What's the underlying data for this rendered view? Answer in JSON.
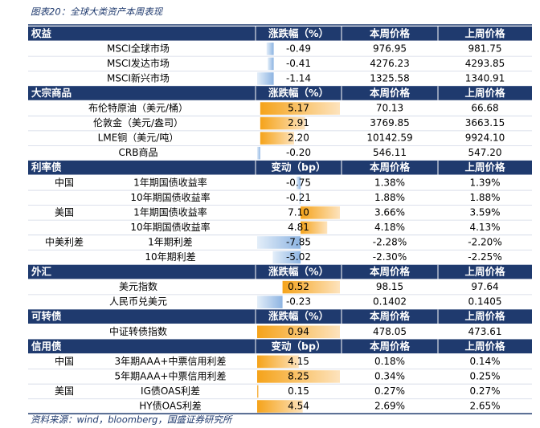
{
  "title": "图表20：全球大类资产本周表现",
  "sections": [
    {
      "title": "权益",
      "change_header": "涨跌幅（%）",
      "this_week_header": "本周价格",
      "last_week_header": "上周价格",
      "rows": [
        {
          "name": "MSCI全球市场",
          "change": -0.49,
          "this_week": "976.95",
          "last_week": "981.75"
        },
        {
          "name": "MSCI发达市场",
          "change": -0.41,
          "this_week": "4276.23",
          "last_week": "4293.85"
        },
        {
          "name": "MSCI新兴市场",
          "change": -1.14,
          "this_week": "1325.58",
          "last_week": "1340.91"
        }
      ]
    },
    {
      "title": "大宗商品",
      "change_header": "涨跌幅（%）",
      "this_week_header": "本周价格",
      "last_week_header": "上周价格",
      "rows": [
        {
          "name": "布伦特原油（美元/桶）",
          "change": 5.17,
          "this_week": "70.13",
          "last_week": "66.68"
        },
        {
          "name": "伦敦金（美元/盎司）",
          "change": 2.91,
          "this_week": "3769.85",
          "last_week": "3663.15"
        },
        {
          "name": "LME铜（美元/吨）",
          "change": 2.2,
          "change_label": "2.20",
          "this_week": "10142.59",
          "last_week": "9924.10"
        },
        {
          "name": "CRB商品",
          "change": -0.2,
          "change_label": "-0.20",
          "this_week": "546.11",
          "last_week": "547.20"
        }
      ]
    },
    {
      "title": "利率债",
      "change_header": "变动（bp）",
      "this_week_header": "本周价格",
      "last_week_header": "上周价格",
      "rows": [
        {
          "group": "中国",
          "name": "1年期国债收益率",
          "change": -0.75,
          "this_week": "1.38%",
          "last_week": "1.39%"
        },
        {
          "name": "10年期国债收益率",
          "change": -0.21,
          "this_week": "1.88%",
          "last_week": "1.88%"
        },
        {
          "group": "美国",
          "name": "1年期国债收益率",
          "change": 7.1,
          "change_label": "7.10",
          "this_week": "3.66%",
          "last_week": "3.59%"
        },
        {
          "name": "10年期国债收益率",
          "change": 4.81,
          "this_week": "4.18%",
          "last_week": "4.13%"
        },
        {
          "group": "中美利差",
          "name": "1年期利差",
          "change": -7.85,
          "this_week": "-2.28%",
          "last_week": "-2.20%"
        },
        {
          "name": "10年期利差",
          "change": -5.02,
          "this_week": "-2.30%",
          "last_week": "-2.25%"
        }
      ]
    },
    {
      "title": "外汇",
      "change_header": "涨跌幅（%）",
      "this_week_header": "本周价格",
      "last_week_header": "上周价格",
      "rows": [
        {
          "name": "美元指数",
          "change": 0.52,
          "this_week": "98.15",
          "last_week": "97.64"
        },
        {
          "name": "人民币兑美元",
          "change": -0.23,
          "this_week": "0.1402",
          "last_week": "0.1405"
        }
      ]
    },
    {
      "title": "可转债",
      "change_header": "涨跌幅（%）",
      "this_week_header": "本周价格",
      "last_week_header": "上周价格",
      "rows": [
        {
          "name": "中证转债指数",
          "change": 0.94,
          "this_week": "478.05",
          "last_week": "473.61"
        }
      ]
    },
    {
      "title": "信用债",
      "change_header": "变动（bp）",
      "this_week_header": "本周价格",
      "last_week_header": "上周价格",
      "rows": [
        {
          "group": "中国",
          "name": "3年期AAA+中票信用利差",
          "change": 4.15,
          "this_week": "0.18%",
          "last_week": "0.14%"
        },
        {
          "name": "5年期AAA+中票信用利差",
          "change": 8.25,
          "this_week": "0.34%",
          "last_week": "0.25%"
        },
        {
          "group": "美国",
          "name": "IG债OAS利差",
          "change": 0.15,
          "this_week": "0.27%",
          "last_week": "0.27%"
        },
        {
          "name": "HY债OAS利差",
          "change": 4.54,
          "this_week": "2.69%",
          "last_week": "2.65%"
        }
      ]
    }
  ],
  "source": "资料来源：wind，bloomberg，国盛证券研究所"
}
